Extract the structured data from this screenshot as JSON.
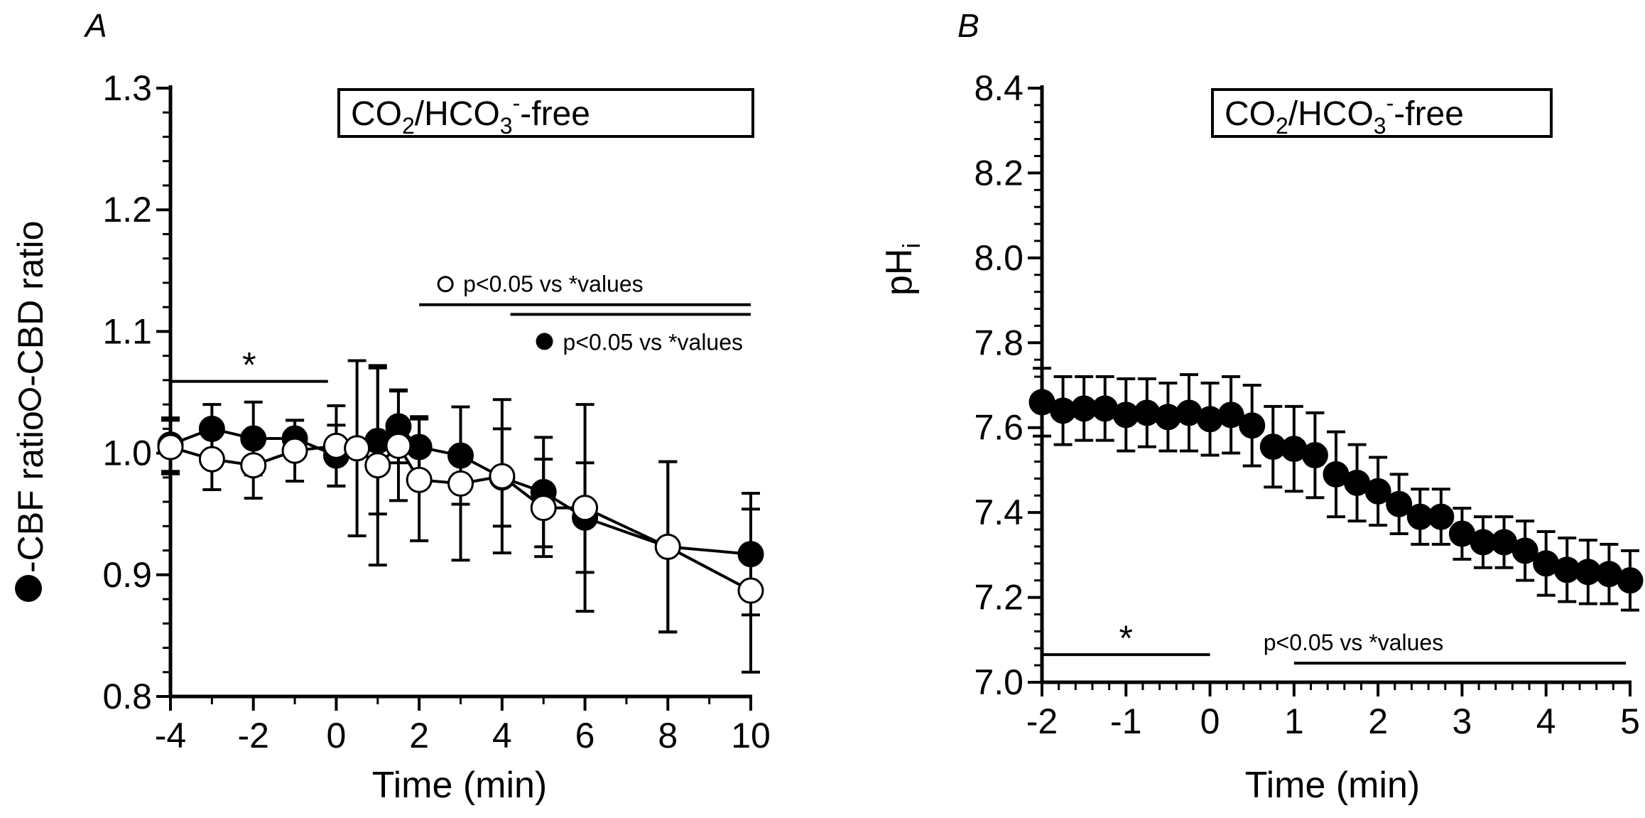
{
  "chart_data": [
    {
      "type": "line",
      "panel_label": "A",
      "xlabel": "Time (min)",
      "ylabel_filled": "-CBF ratio",
      "ylabel_open": "-CBD ratio",
      "xlim": [
        -4,
        10
      ],
      "ylim": [
        0.8,
        1.3
      ],
      "xticks": [
        -4,
        -2,
        0,
        2,
        4,
        6,
        8,
        10
      ],
      "xtick_labels": [
        "-4",
        "-2",
        "0",
        "2",
        "4",
        "6",
        "8",
        "10"
      ],
      "yticks": [
        0.8,
        0.9,
        1.0,
        1.1,
        1.2,
        1.3
      ],
      "ytick_labels": [
        "0.8",
        "0.9",
        "1.0",
        "1.1",
        "1.2",
        "1.3"
      ],
      "condition_box": {
        "co": "CO",
        "sub2": "2",
        "hco": "/HCO",
        "sub3": "3",
        "sup": "-",
        "free": "-free"
      },
      "star_label": "*",
      "star_range": [
        -4,
        -0.2
      ],
      "sig_open_label": "p<0.05 vs *values",
      "sig_open_range": [
        2,
        10
      ],
      "sig_filled_label": "p<0.05 vs *values",
      "sig_filled_range": [
        4.2,
        10
      ],
      "series": [
        {
          "name": "CBF ratio (filled)",
          "marker": "filled",
          "x": [
            -4,
            -3,
            -2,
            -1,
            0,
            1,
            1.5,
            2,
            3,
            4,
            5,
            6,
            8,
            10
          ],
          "y": [
            1.007,
            1.02,
            1.012,
            1.012,
            0.998,
            1.01,
            1.022,
            1.005,
            0.998,
            0.98,
            0.968,
            0.947,
            0.923,
            0.917
          ],
          "err": [
            0.022,
            0.02,
            0.03,
            0.015,
            0.025,
            0.06,
            0.03,
            0.025,
            0.04,
            0.04,
            0.045,
            0.045,
            0.07,
            0.05
          ]
        },
        {
          "name": "CBD ratio (open)",
          "marker": "open",
          "x": [
            -4,
            -3,
            -2,
            -1,
            0,
            0.5,
            1,
            1.5,
            2,
            3,
            4,
            5,
            6,
            8,
            10
          ],
          "y": [
            1.005,
            0.995,
            0.99,
            1.002,
            1.006,
            1.004,
            0.99,
            1.006,
            0.978,
            0.975,
            0.981,
            0.955,
            0.955,
            0.923,
            0.887
          ],
          "err": [
            0.022,
            0.025,
            0.027,
            0.025,
            0.033,
            0.072,
            0.082,
            0.045,
            0.05,
            0.063,
            0.063,
            0.04,
            0.085,
            0.07,
            0.067
          ]
        }
      ]
    },
    {
      "type": "line",
      "panel_label": "B",
      "xlabel": "Time (min)",
      "ylabel": "pH",
      "ylabel_sub": "i",
      "xlim": [
        -2,
        5
      ],
      "ylim": [
        7.0,
        8.4
      ],
      "xticks": [
        -2,
        -1,
        0,
        1,
        2,
        3,
        4,
        5
      ],
      "xtick_labels": [
        "-2",
        "-1",
        "0",
        "1",
        "2",
        "3",
        "4",
        "5"
      ],
      "yticks": [
        7.0,
        7.2,
        7.4,
        7.6,
        7.8,
        8.0,
        8.2,
        8.4
      ],
      "ytick_labels": [
        "7.0",
        "7.2",
        "7.4",
        "7.6",
        "7.8",
        "8.0",
        "8.2",
        "8.4"
      ],
      "condition_box": {
        "co": "CO",
        "sub2": "2",
        "hco": "/HCO",
        "sub3": "3",
        "sup": "-",
        "free": "-free"
      },
      "star_label": "*",
      "star_range": [
        -2,
        0
      ],
      "sig_label": "p<0.05 vs *values",
      "sig_range": [
        1,
        4.95
      ],
      "series": [
        {
          "name": "pHi",
          "marker": "filled",
          "x": [
            -2.0,
            -1.75,
            -1.5,
            -1.25,
            -1.0,
            -0.75,
            -0.5,
            -0.25,
            0.0,
            0.25,
            0.5,
            0.75,
            1.0,
            1.25,
            1.5,
            1.75,
            2.0,
            2.25,
            2.5,
            2.75,
            3.0,
            3.25,
            3.5,
            3.75,
            4.0,
            4.25,
            4.5,
            4.75,
            5.0
          ],
          "y": [
            7.66,
            7.64,
            7.645,
            7.645,
            7.63,
            7.635,
            7.625,
            7.635,
            7.62,
            7.63,
            7.605,
            7.555,
            7.55,
            7.535,
            7.49,
            7.47,
            7.45,
            7.42,
            7.39,
            7.39,
            7.35,
            7.33,
            7.33,
            7.31,
            7.28,
            7.265,
            7.26,
            7.255,
            7.24
          ],
          "err": [
            0.08,
            0.08,
            0.075,
            0.075,
            0.085,
            0.08,
            0.08,
            0.09,
            0.085,
            0.09,
            0.095,
            0.095,
            0.1,
            0.1,
            0.1,
            0.09,
            0.08,
            0.07,
            0.065,
            0.065,
            0.06,
            0.06,
            0.06,
            0.07,
            0.075,
            0.075,
            0.075,
            0.07,
            0.07
          ]
        }
      ]
    }
  ]
}
